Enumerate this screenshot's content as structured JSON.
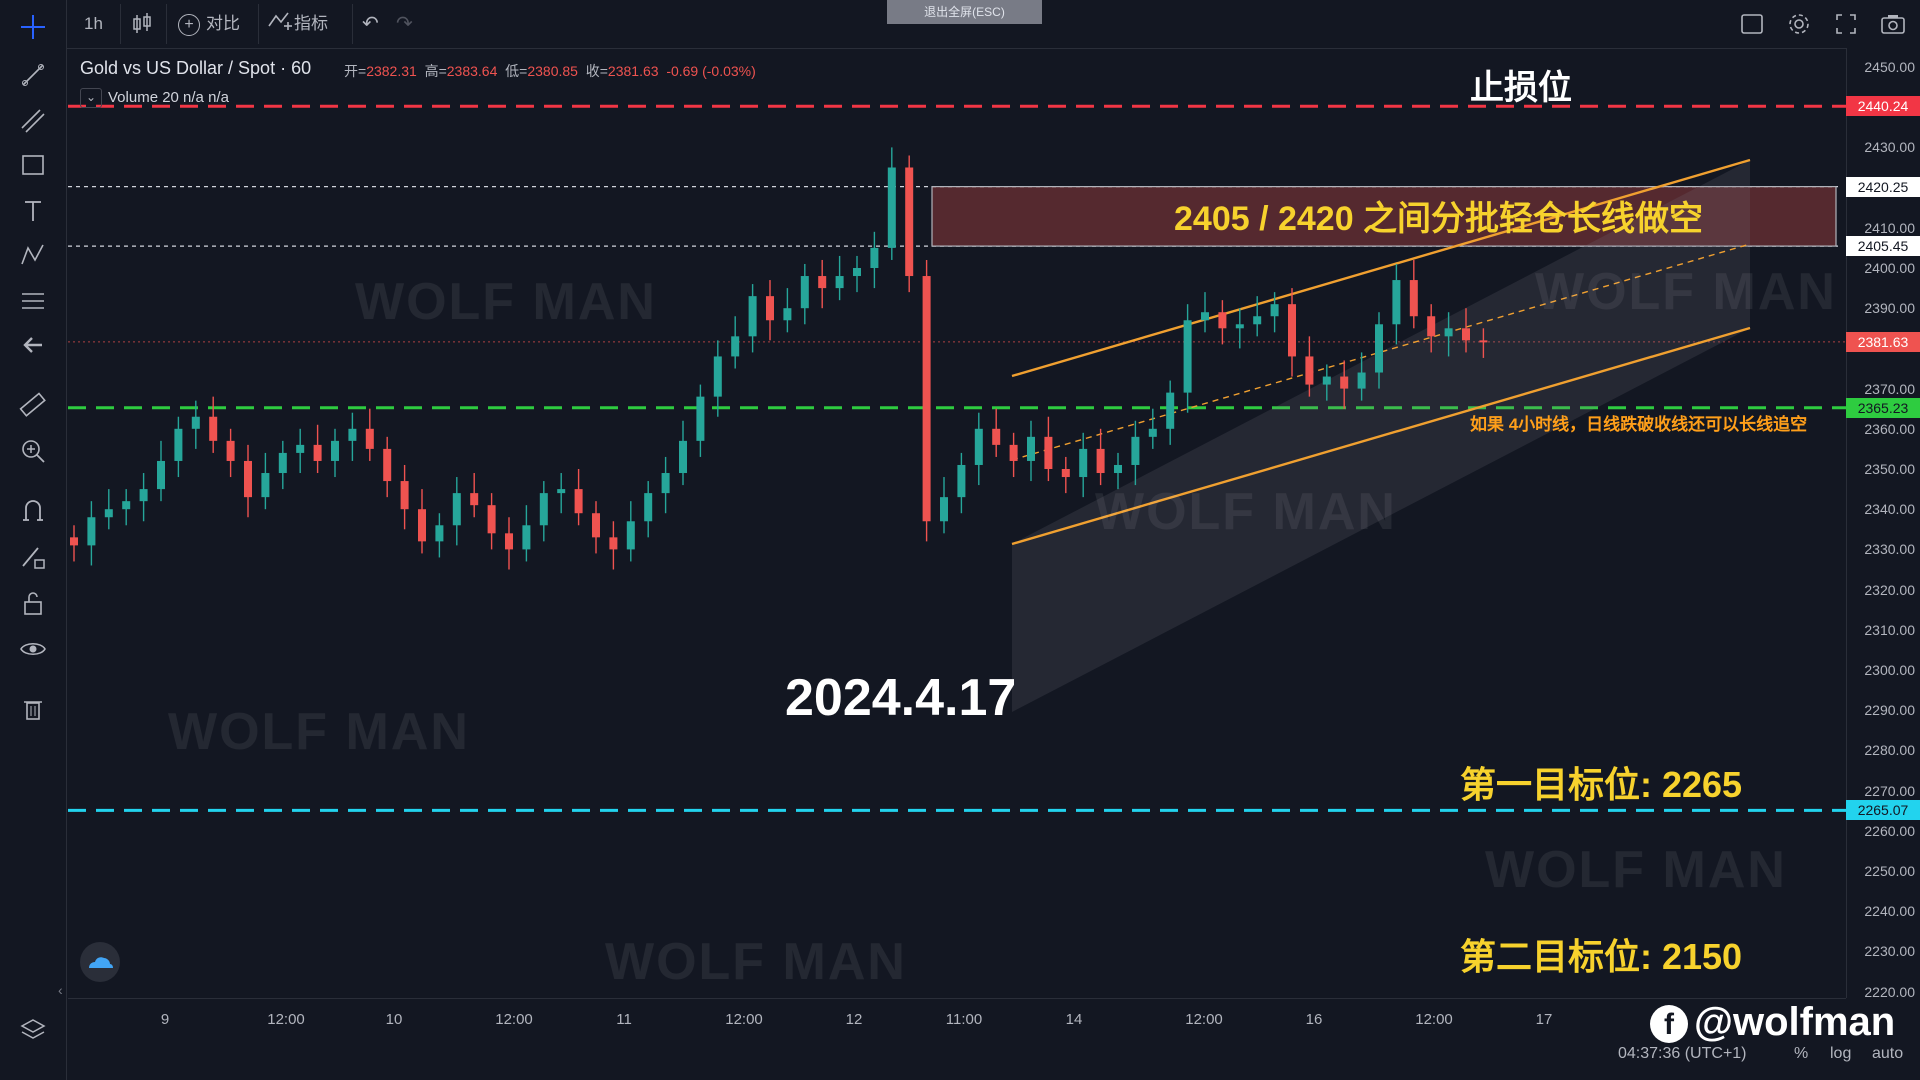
{
  "toolbar": {
    "interval": "1h",
    "compare_label": "对比",
    "indicators_label": "指标",
    "exit_fullscreen": "退出全屏(ESC)"
  },
  "legend": {
    "symbol": "Gold vs US Dollar / Spot · 60",
    "open_label": "开=",
    "open": "2382.31",
    "high_label": "高=",
    "high": "2383.64",
    "low_label": "低=",
    "low": "2380.85",
    "close_label": "收=",
    "close": "2381.63",
    "change": "-0.69 (-0.03%)",
    "volume": "Volume 20  n/a  n/a"
  },
  "annotations": {
    "stop_loss": "止损位",
    "short_zone": "2405 / 2420 之间分批轻仓长线做空",
    "breakdown_note": "如果 4小时线，日线跌破收线还可以长线追空",
    "date": "2024.4.17",
    "target1": "第一目标位: 2265",
    "target2": "第二目标位:  2150",
    "watermark": "WOLF MAN",
    "handle": "@wolfman"
  },
  "y_axis": {
    "ticks": [
      "2450.00",
      "2430.00",
      "2410.00",
      "2400.00",
      "2390.00",
      "2370.00",
      "2360.00",
      "2350.00",
      "2340.00",
      "2330.00",
      "2320.00",
      "2310.00",
      "2300.00",
      "2290.00",
      "2280.00",
      "2270.00",
      "2260.00",
      "2250.00",
      "2240.00",
      "2230.00",
      "2220.00"
    ],
    "badges": {
      "stop": "2440.24",
      "zone_top": "2420.25",
      "zone_bottom": "2405.45",
      "last": "2381.63",
      "support": "2365.23",
      "target": "2265.07"
    }
  },
  "x_axis": {
    "ticks": [
      "9",
      "12:00",
      "10",
      "12:00",
      "11",
      "12:00",
      "12",
      "11:00",
      "14",
      "12:00",
      "16",
      "12:00",
      "17"
    ]
  },
  "footer": {
    "clock": "04:37:36 (UTC+1)",
    "percent": "%",
    "log": "log",
    "auto": "auto"
  },
  "colors": {
    "background": "#131722",
    "up": "#26a69a",
    "down": "#ef5350",
    "stop_line": "#f23645",
    "support_line": "#2ecc40",
    "target_line": "#22d3ee",
    "channel": "#f0a030",
    "annotation_yellow": "#f7d22d",
    "annotation_orange": "#ff9f1a"
  },
  "chart_data": {
    "type": "candlestick",
    "instrument": "XAUUSD",
    "interval": "60",
    "ylim": [
      2215,
      2455
    ],
    "x": [
      "9",
      "12:00",
      "10",
      "12:00",
      "11",
      "12:00",
      "12",
      "11:00",
      "14",
      "12:00",
      "16",
      "12:00",
      "17"
    ],
    "closes": [
      2331,
      2338,
      2340,
      2342,
      2345,
      2352,
      2360,
      2363,
      2357,
      2352,
      2343,
      2349,
      2354,
      2356,
      2352,
      2357,
      2360,
      2355,
      2347,
      2340,
      2332,
      2336,
      2344,
      2341,
      2334,
      2330,
      2336,
      2344,
      2345,
      2339,
      2333,
      2330,
      2337,
      2344,
      2349,
      2357,
      2368,
      2378,
      2383,
      2393,
      2387,
      2390,
      2398,
      2395,
      2398,
      2400,
      2405,
      2425,
      2398,
      2337,
      2343,
      2351,
      2360,
      2356,
      2352,
      2358,
      2350,
      2348,
      2355,
      2349,
      2351,
      2358,
      2360,
      2369,
      2387,
      2389,
      2385,
      2386,
      2388,
      2391,
      2378,
      2371,
      2373,
      2370,
      2374,
      2386,
      2397,
      2388,
      2383,
      2385,
      2382,
      2381.63
    ],
    "levels": {
      "stop_loss": 2440.24,
      "short_zone": [
        2405.45,
        2420.25
      ],
      "support": 2365.23,
      "target1": 2265.07,
      "target1_label": 2265,
      "target2_label": 2150
    }
  }
}
